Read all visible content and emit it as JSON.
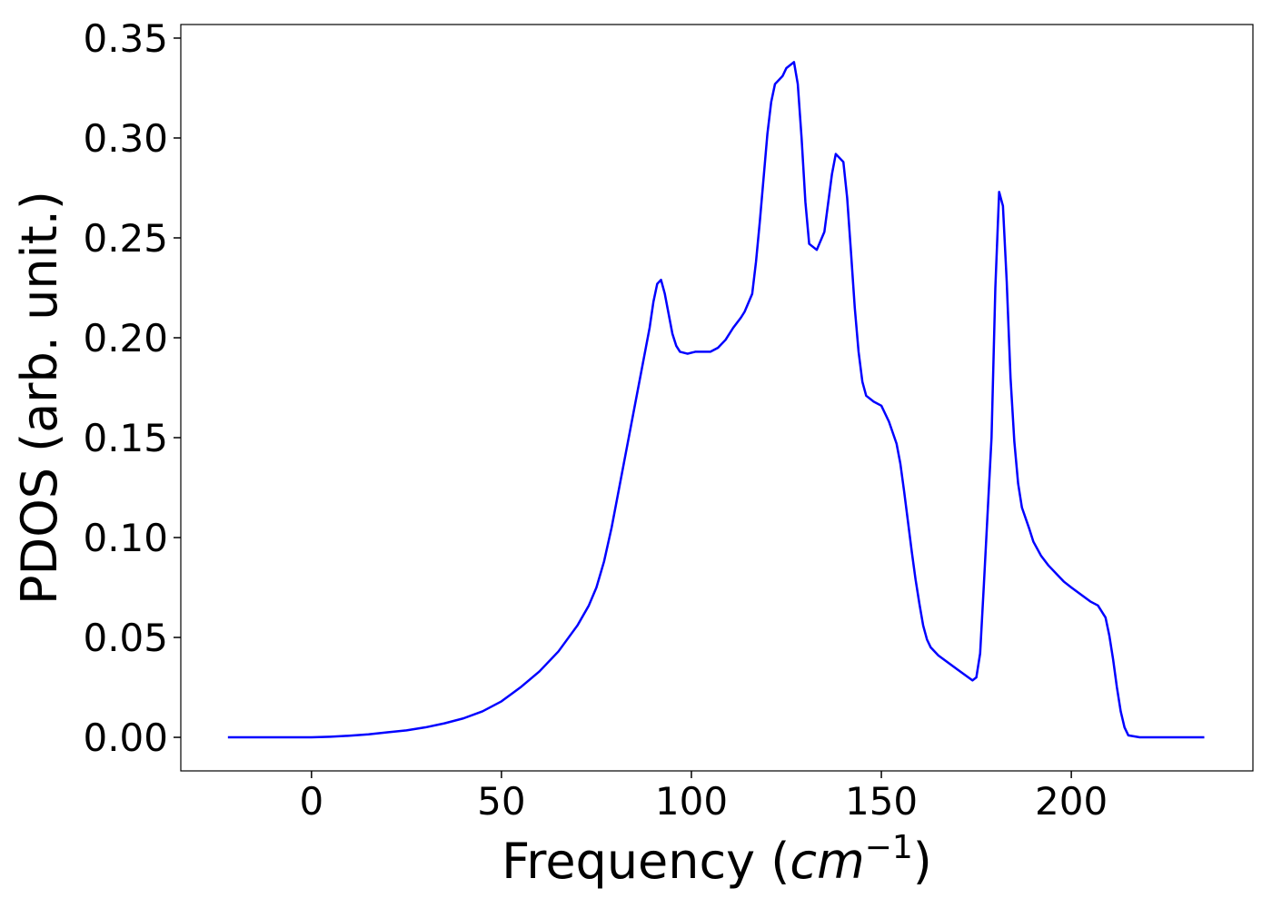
{
  "chart_data": {
    "type": "line",
    "xlabel": [
      "Frequency (",
      "cm",
      "−1",
      ")"
    ],
    "ylabel": "PDOS (arb. unit.)",
    "color": "#0000ff",
    "x": [
      -22,
      0,
      5,
      10,
      15,
      20,
      25,
      30,
      35,
      40,
      45,
      50,
      55,
      60,
      65,
      70,
      73,
      75,
      77,
      79,
      81,
      83,
      85,
      87,
      89,
      90,
      91,
      92,
      93,
      95,
      96,
      97,
      99,
      101,
      103,
      105,
      107,
      109,
      111,
      113,
      114,
      116,
      117,
      118,
      119,
      120,
      121,
      122,
      124,
      125,
      127,
      128,
      129,
      130,
      131,
      133,
      135,
      137,
      138,
      140,
      141,
      142,
      143,
      144,
      145,
      146,
      148,
      150,
      152,
      154,
      155,
      156,
      157,
      158,
      159,
      160,
      161,
      162,
      163,
      165,
      170,
      174,
      175,
      176,
      177,
      179,
      180,
      181,
      182,
      183,
      184,
      185,
      186,
      187,
      189,
      190,
      192,
      194,
      196,
      198,
      200,
      205,
      207,
      209,
      210,
      211,
      212,
      213,
      214,
      215,
      218,
      235
    ],
    "values": [
      0,
      0,
      0.0003,
      0.0008,
      0.0015,
      0.0025,
      0.0035,
      0.005,
      0.007,
      0.0095,
      0.013,
      0.018,
      0.025,
      0.033,
      0.043,
      0.056,
      0.066,
      0.075,
      0.088,
      0.105,
      0.125,
      0.145,
      0.165,
      0.185,
      0.205,
      0.218,
      0.227,
      0.229,
      0.222,
      0.202,
      0.196,
      0.193,
      0.192,
      0.193,
      0.193,
      0.193,
      0.195,
      0.199,
      0.205,
      0.21,
      0.213,
      0.222,
      0.238,
      0.258,
      0.28,
      0.302,
      0.318,
      0.327,
      0.331,
      0.335,
      0.338,
      0.327,
      0.3,
      0.268,
      0.247,
      0.244,
      0.253,
      0.282,
      0.292,
      0.288,
      0.27,
      0.243,
      0.215,
      0.193,
      0.178,
      0.171,
      0.168,
      0.166,
      0.158,
      0.147,
      0.137,
      0.123,
      0.108,
      0.093,
      0.079,
      0.067,
      0.056,
      0.049,
      0.045,
      0.041,
      0.034,
      0.0285,
      0.03,
      0.042,
      0.077,
      0.15,
      0.225,
      0.273,
      0.266,
      0.228,
      0.18,
      0.148,
      0.127,
      0.115,
      0.104,
      0.098,
      0.091,
      0.086,
      0.082,
      0.078,
      0.075,
      0.068,
      0.066,
      0.06,
      0.051,
      0.039,
      0.025,
      0.013,
      0.005,
      0.001,
      0,
      0
    ],
    "xlim": [
      -34.4,
      247.8
    ],
    "ylim": [
      -0.0168,
      0.3568
    ],
    "xticks": [
      0,
      50,
      100,
      150,
      200
    ],
    "yticks": [
      {
        "value": 0,
        "label": "0.00"
      },
      {
        "value": 0.05,
        "label": "0.05"
      },
      {
        "value": 0.1,
        "label": "0.10"
      },
      {
        "value": 0.15,
        "label": "0.15"
      },
      {
        "value": 0.2,
        "label": "0.20"
      },
      {
        "value": 0.25,
        "label": "0.25"
      },
      {
        "value": 0.3,
        "label": "0.30"
      },
      {
        "value": 0.35,
        "label": "0.35"
      }
    ]
  }
}
